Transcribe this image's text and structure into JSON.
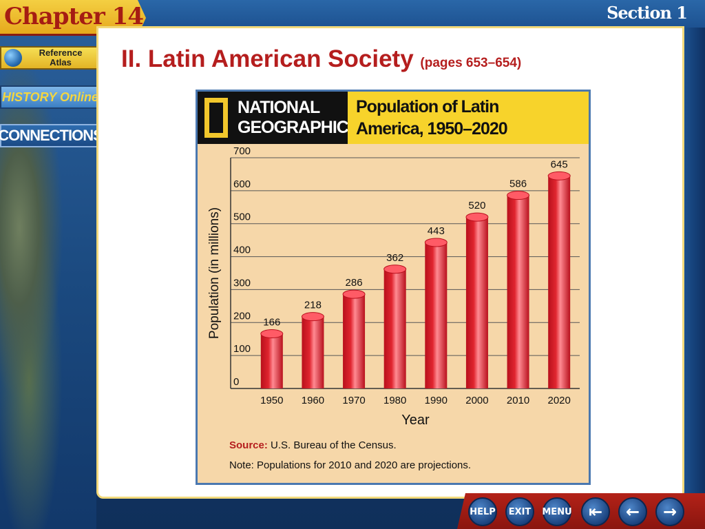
{
  "header": {
    "chapter": "Chapter 14",
    "section": "Section 1"
  },
  "sidebar": {
    "atlas_label_line1": "Reference",
    "atlas_label_line2": "Atlas",
    "history_label": "HISTORY Online",
    "connections_label": "CONNECTIONS"
  },
  "main": {
    "heading": "II.  Latin American Society",
    "pages": "(pages 653–654)"
  },
  "chart_panel": {
    "brand_line1": "NATIONAL",
    "brand_line2": "GEOGRAPHIC",
    "title_line1": "Population of Latin",
    "title_line2": "America, 1950–2020",
    "source_label": "Source:",
    "source_text": " U.S. Bureau of the Census.",
    "note": "Note: Populations for 2010 and 2020 are projections."
  },
  "chart_data": {
    "type": "bar",
    "title": "Population of Latin America, 1950–2020",
    "xlabel": "Year",
    "ylabel": "Population (in millions)",
    "categories": [
      "1950",
      "1960",
      "1970",
      "1980",
      "1990",
      "2000",
      "2010",
      "2020"
    ],
    "values": [
      166,
      218,
      286,
      362,
      443,
      520,
      586,
      645
    ],
    "ylim": [
      0,
      700
    ],
    "yticks": [
      0,
      100,
      200,
      300,
      400,
      500,
      600,
      700
    ],
    "grid": true,
    "bar_color": "#e0252f"
  },
  "nav": {
    "help": "HELP",
    "exit": "EXIT",
    "menu": "MENU",
    "first": "⇤",
    "back": "←",
    "forward": "→"
  }
}
